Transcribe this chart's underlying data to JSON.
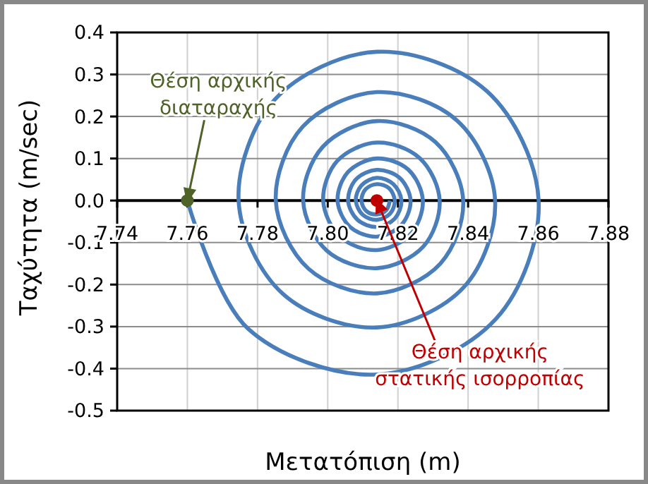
{
  "chart_data": {
    "type": "line",
    "xlabel": "Μετατόπιση (m)",
    "ylabel": "Ταχύτητα (m/sec)",
    "xlim": [
      7.74,
      7.88
    ],
    "xticks": [
      7.74,
      7.76,
      7.78,
      {
        "value": 7.8,
        "label": "7.80"
      },
      7.82,
      7.84,
      7.86,
      7.88
    ],
    "ylim": [
      -0.5,
      0.4
    ],
    "yticks": [
      -0.5,
      -0.4,
      -0.3,
      -0.2,
      -0.1,
      {
        "value": 0,
        "label": "0.0"
      },
      0.1,
      0.2,
      0.3,
      0.4
    ],
    "grid": true,
    "marker": "none",
    "line_style": "solid",
    "series": [
      {
        "type": "line",
        "color": "#4a7ebb",
        "x": [
          7.76,
          7.7773,
          7.814,
          7.8479,
          7.8601,
          7.8454,
          7.814,
          7.785,
          7.7746,
          7.7872,
          7.814,
          7.8388,
          7.8477,
          7.8369,
          7.814,
          7.7929,
          7.7852,
          7.7945,
          7.814,
          7.8321,
          7.8386,
          7.8307,
          7.814,
          7.7986,
          7.793,
          7.7997,
          7.814,
          7.8272,
          7.8319,
          7.8262,
          7.814,
          7.8027,
          7.7987,
          7.8036,
          7.814,
          7.8236,
          7.8271,
          7.8229,
          7.814,
          7.8058,
          7.8028,
          7.8064,
          7.814,
          7.821,
          7.8236,
          7.8205,
          7.814,
          7.808,
          7.8058,
          7.8085,
          7.814,
          7.8191,
          7.821,
          7.8187,
          7.814,
          7.8096,
          7.808,
          7.81,
          7.814,
          7.8178,
          7.8191,
          7.8175,
          7.814,
          7.8108,
          7.8096,
          7.811,
          7.814,
          7.8167,
          7.8177
        ],
        "values": [
          0,
          -0.305,
          -0.414,
          -0.282,
          0,
          0.26,
          0.354,
          0.241,
          0,
          -0.222,
          -0.302,
          -0.206,
          0,
          0.19,
          0.258,
          0.176,
          0,
          -0.162,
          -0.221,
          -0.15,
          0,
          0.139,
          0.189,
          0.128,
          0,
          -0.119,
          -0.161,
          -0.11,
          0,
          0.101,
          0.138,
          0.094,
          0,
          -0.087,
          -0.118,
          -0.08,
          0,
          0.074,
          0.1,
          0.068,
          0,
          -0.063,
          -0.086,
          -0.058,
          0,
          0.054,
          0.073,
          0.05,
          0,
          -0.046,
          -0.063,
          -0.043,
          0,
          0.039,
          0.054,
          0.036,
          0,
          -0.034,
          -0.046,
          -0.031,
          0,
          0.029,
          0.039,
          0.027,
          0,
          -0.025,
          -0.033,
          -0.023,
          0
        ]
      },
      {
        "type": "scatter",
        "color": "#4f6228",
        "marker": "circle",
        "x": [
          7.76
        ],
        "values": [
          0
        ]
      },
      {
        "type": "scatter",
        "color": "#c00000",
        "marker": "circle",
        "x": [
          7.814
        ],
        "values": [
          0
        ]
      }
    ],
    "annotations": [
      {
        "text": "Θέση αρχικής\nδιαταραχής",
        "x": 7.76,
        "y": 0
      },
      {
        "text": "Θέση αρχικής\nστατικής ισορροπίας",
        "x": 7.814,
        "y": 0
      }
    ]
  }
}
